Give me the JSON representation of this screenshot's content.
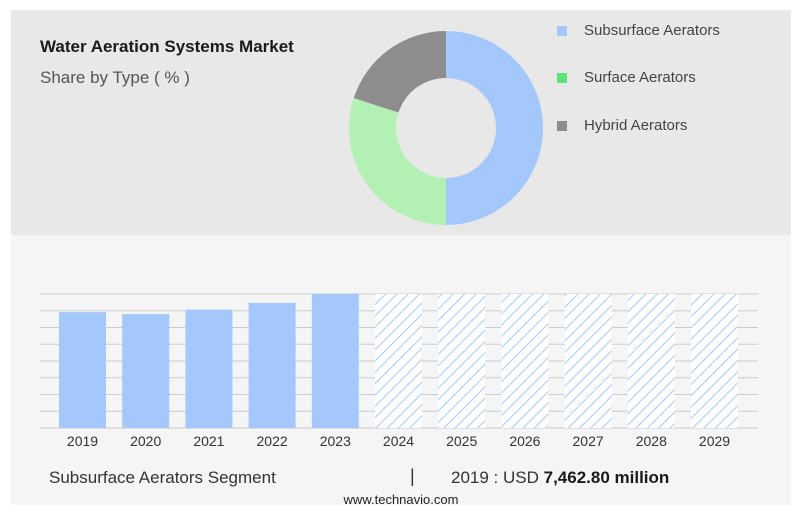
{
  "header": {
    "title": "Water Aeration Systems Market",
    "subtitle": "Share by Type ( % )"
  },
  "legend": [
    {
      "label": "Subsurface Aerators",
      "color": "#a4c8fb"
    },
    {
      "label": "Surface Aerators",
      "color": "#b3f0b3"
    },
    {
      "label": "Hybrid Aerators",
      "color": "#8d8d8d"
    }
  ],
  "footer": {
    "segment": "Subsurface Aerators Segment",
    "separator": "|",
    "year_label": "2019 : USD",
    "value": "7,462.80 million",
    "url": "www.technavio.com"
  },
  "chart_data": [
    {
      "type": "pie",
      "title": "Water Aeration Systems Market",
      "subtitle": "Share by Type ( % )",
      "donut": true,
      "categories": [
        "Subsurface Aerators",
        "Surface Aerators",
        "Hybrid Aerators"
      ],
      "values": [
        50,
        30,
        20
      ],
      "colors": [
        "#a4c8fb",
        "#b3f0b3",
        "#8d8d8d"
      ]
    },
    {
      "type": "bar",
      "categories": [
        "2019",
        "2020",
        "2021",
        "2022",
        "2023",
        "2024",
        "2025",
        "2026",
        "2027",
        "2028",
        "2029"
      ],
      "values": [
        7462.8,
        7340,
        7620,
        8060,
        8630,
        null,
        null,
        null,
        null,
        null,
        null
      ],
      "forecast": [
        false,
        false,
        false,
        false,
        false,
        true,
        true,
        true,
        true,
        true,
        true
      ],
      "ylim": [
        0,
        8630
      ],
      "grid": true,
      "bar_color": "#a4c8fb",
      "forecast_color": "#a4c8fb"
    }
  ]
}
